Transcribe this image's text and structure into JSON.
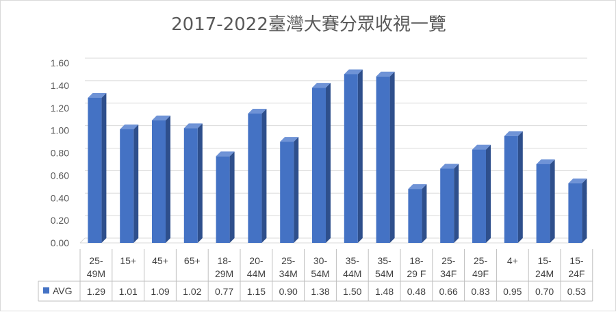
{
  "chart_data": {
    "type": "bar",
    "style": "3d-column",
    "title": "2017-2022臺灣大賽分眾收視一覽",
    "categories": [
      [
        "25-",
        "49M"
      ],
      [
        "15+",
        ""
      ],
      [
        "45+",
        ""
      ],
      [
        "65+",
        ""
      ],
      [
        "18-",
        "29M"
      ],
      [
        "20-",
        "44M"
      ],
      [
        "25-",
        "34M"
      ],
      [
        "30-",
        "54M"
      ],
      [
        "35-",
        "44M"
      ],
      [
        "35-",
        "54M"
      ],
      [
        "18-",
        "29 F"
      ],
      [
        "25-",
        "34F"
      ],
      [
        "25-",
        "49F"
      ],
      [
        "4+",
        ""
      ],
      [
        "15-",
        "24M"
      ],
      [
        "15-",
        "24F"
      ]
    ],
    "series": [
      {
        "name": "AVG",
        "values": [
          1.29,
          1.01,
          1.09,
          1.02,
          0.77,
          1.15,
          0.9,
          1.38,
          1.5,
          1.48,
          0.48,
          0.66,
          0.83,
          0.95,
          0.7,
          0.53
        ],
        "value_labels": [
          "1.29",
          "1.01",
          "1.09",
          "1.02",
          "0.77",
          "1.15",
          "0.90",
          "1.38",
          "1.50",
          "1.48",
          "0.48",
          "0.66",
          "0.83",
          "0.95",
          "0.70",
          "0.53"
        ]
      }
    ],
    "y_ticks": [
      "0.00",
      "0.20",
      "0.40",
      "0.60",
      "0.80",
      "1.00",
      "1.20",
      "1.40",
      "1.60"
    ],
    "ylim": [
      0,
      1.6
    ],
    "grid": true,
    "data_table": true,
    "legend": "data-table-left",
    "colors": {
      "bar_front": "#4472c4",
      "bar_side": "#2e4f8c",
      "bar_top": "#6f93d6",
      "gridline": "#d9d9d9",
      "text": "#595959"
    }
  }
}
